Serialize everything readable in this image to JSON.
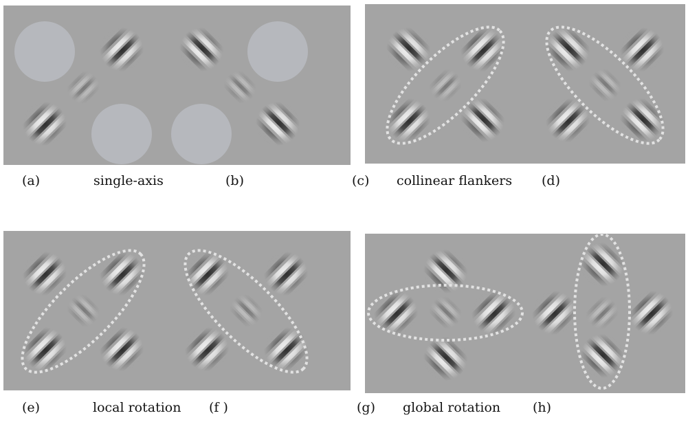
{
  "colors": {
    "background": "#a4a4a4",
    "disc": "#b6b8bd",
    "ellipse": "#e2e2e2",
    "caption": "#111111"
  },
  "panels": [
    {
      "id": "single-axis",
      "left_label": "(a)",
      "caption": "single-axis",
      "right_label": "(b)",
      "left_half": {
        "gratings": [
          "tl-diag",
          "bl-diag",
          "center-faint-diag"
        ],
        "discs": [
          "top-left",
          "bottom-right"
        ],
        "ellipse": "none"
      },
      "right_half": {
        "gratings": [
          "tl-anti",
          "br-anti",
          "center-faint-anti"
        ],
        "discs": [
          "top-right",
          "bottom-left"
        ],
        "ellipse": "none"
      }
    },
    {
      "id": "collinear-flankers",
      "left_label": "(c)",
      "caption": "collinear flankers",
      "right_label": "(d)",
      "left_half": {
        "gratings": "four-corners-plus-center",
        "orientation": "diag",
        "ellipse": "diag"
      },
      "right_half": {
        "gratings": "four-corners-plus-center",
        "orientation": "anti",
        "ellipse": "anti"
      }
    },
    {
      "id": "local-rotation",
      "left_label": "(e)",
      "caption": "local rotation",
      "right_label": "(f )",
      "left_half": {
        "gratings": "four-corners-plus-center",
        "orientation": "diag",
        "center": "anti",
        "ellipse": "diag"
      },
      "right_half": {
        "gratings": "four-corners-plus-center",
        "orientation": "diag",
        "center": "anti",
        "ellipse": "anti"
      }
    },
    {
      "id": "global-rotation",
      "left_label": "(g)",
      "caption": "global rotation",
      "right_label": "(h)",
      "left_half": {
        "gratings": "plus-shape",
        "orientation": "diag",
        "ellipse": "horizontal"
      },
      "right_half": {
        "gratings": "plus-shape",
        "orientation": "anti",
        "ellipse": "vertical"
      }
    }
  ]
}
